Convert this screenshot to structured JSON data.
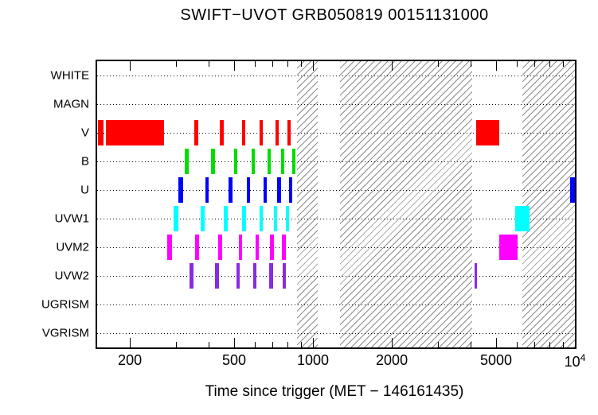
{
  "title": "SWIFT−UVOT GRB050819 00151131000",
  "xlabel": "Time since trigger (MET − 146161435)",
  "chart_data": {
    "type": "timeline",
    "x_scale": "log",
    "x_range": [
      150,
      10000
    ],
    "grid": "dotted-horizontal-per-row",
    "x_major_ticks": [
      {
        "value": 200,
        "label": "200"
      },
      {
        "value": 500,
        "label": "500"
      },
      {
        "value": 1000,
        "label": "1000"
      },
      {
        "value": 2000,
        "label": "2000"
      },
      {
        "value": 5000,
        "label": "5000"
      },
      {
        "value": 10000,
        "label": "10",
        "sup": "4"
      }
    ],
    "x_minor_ticks": [
      300,
      400,
      600,
      700,
      800,
      900,
      3000,
      4000,
      6000,
      7000,
      8000,
      9000
    ],
    "hatched_regions": [
      [
        870,
        1040
      ],
      [
        1270,
        4060
      ],
      [
        6300,
        10000
      ]
    ],
    "rows": [
      {
        "label": "WHITE",
        "color": "#000000",
        "intervals": []
      },
      {
        "label": "MAGN",
        "color": "#000000",
        "intervals": []
      },
      {
        "label": "V",
        "color": "#ff0000",
        "intervals": [
          [
            151,
            159
          ],
          [
            162,
            270
          ],
          [
            352,
            365
          ],
          [
            442,
            457
          ],
          [
            535,
            552
          ],
          [
            626,
            645
          ],
          [
            717,
            739
          ],
          [
            797,
            821
          ],
          [
            4200,
            5150
          ]
        ]
      },
      {
        "label": "B",
        "color": "#00dd00",
        "intervals": [
          [
            323,
            335
          ],
          [
            408,
            422
          ],
          [
            499,
            515
          ],
          [
            583,
            601
          ],
          [
            672,
            692
          ],
          [
            753,
            775
          ],
          [
            831,
            855
          ]
        ]
      },
      {
        "label": "U",
        "color": "#0000ff",
        "intervals": [
          [
            307,
            319
          ],
          [
            389,
            401
          ],
          [
            477,
            493
          ],
          [
            559,
            577
          ],
          [
            648,
            668
          ],
          [
            732,
            754
          ],
          [
            808,
            832
          ],
          [
            9600,
            10000
          ]
        ]
      },
      {
        "label": "UVW1",
        "color": "#00ffff",
        "intervals": [
          [
            294,
            306
          ],
          [
            373,
            385
          ],
          [
            458,
            472
          ],
          [
            538,
            556
          ],
          [
            625,
            645
          ],
          [
            710,
            732
          ],
          [
            786,
            810
          ],
          [
            5900,
            6700
          ]
        ]
      },
      {
        "label": "UVM2",
        "color": "#ff00ff",
        "intervals": [
          [
            277,
            289
          ],
          [
            355,
            367
          ],
          [
            436,
            450
          ],
          [
            520,
            536
          ],
          [
            604,
            622
          ],
          [
            686,
            708
          ],
          [
            763,
            787
          ],
          [
            5150,
            6050
          ]
        ]
      },
      {
        "label": "UVW2",
        "color": "#8a2be2",
        "intervals": [
          [
            337,
            349
          ],
          [
            423,
            437
          ],
          [
            510,
            526
          ],
          [
            591,
            609
          ],
          [
            681,
            703
          ],
          [
            766,
            790
          ],
          [
            4150,
            4230
          ]
        ]
      },
      {
        "label": "UGRISM",
        "color": "#000000",
        "intervals": []
      },
      {
        "label": "VGRISM",
        "color": "#000000",
        "intervals": []
      }
    ]
  }
}
